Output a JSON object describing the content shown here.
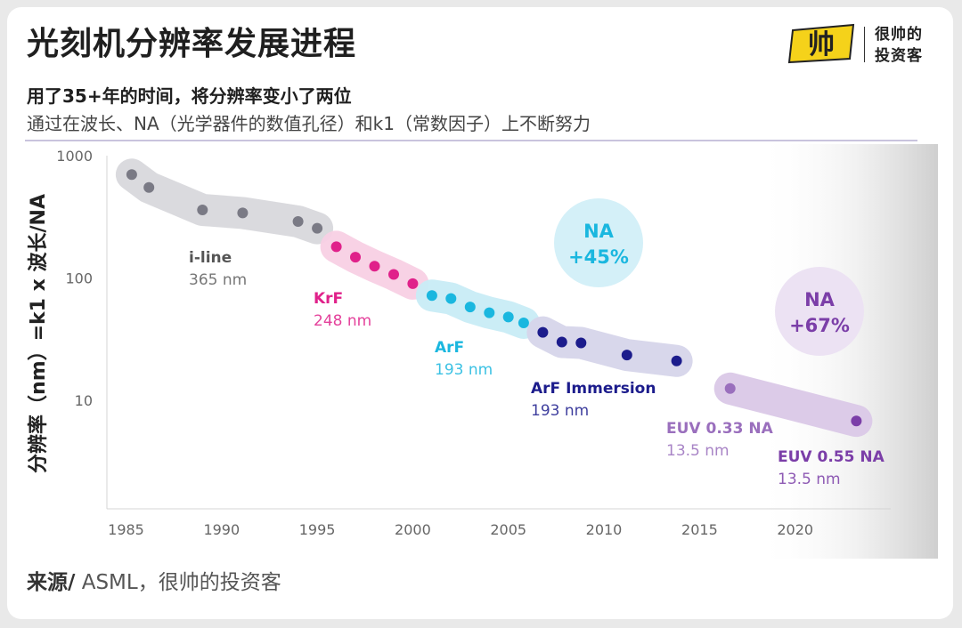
{
  "header": {
    "title": "光刻机分辨率发展进程",
    "subtitle": "用了35+年的时间，将分辨率变小了两位",
    "description": "通过在波长、NA（光学器件的数值孔径）和k1（常数因子）上不断努力",
    "source_label": "来源/",
    "source_text": " ASML，很帅的投资客"
  },
  "brand": {
    "logo_text": "帅",
    "line1": "很帅的",
    "line2": "投资客",
    "color": "#f5d21a"
  },
  "chart_data": {
    "type": "scatter",
    "title": "",
    "xlabel": "",
    "ylabel": "分辨率（nm）=k1 x 波长/NA",
    "y_scale": "log",
    "xlim": [
      1984,
      2025
    ],
    "ylim": [
      1.3,
      1000
    ],
    "x_ticks": [
      1985,
      1990,
      1995,
      2000,
      2005,
      2010,
      2015,
      2020
    ],
    "y_ticks": [
      1000,
      100,
      10
    ],
    "x_tick_labels": [
      "1985",
      "1990",
      "1995",
      "2000",
      "2005",
      "2010",
      "2015",
      "2020"
    ],
    "y_tick_labels": [
      "1000",
      "100",
      "10"
    ],
    "series": [
      {
        "key": "iline",
        "name": "i-line",
        "sub": "365 nm",
        "color": "#7a7a85",
        "band": "#d8d8dc",
        "points": [
          [
            1985.3,
            700
          ],
          [
            1986.2,
            550
          ],
          [
            1989,
            360
          ],
          [
            1991.1,
            340
          ],
          [
            1994,
            290
          ],
          [
            1995,
            255
          ]
        ]
      },
      {
        "key": "krf",
        "name": "KrF",
        "sub": "248 nm",
        "color": "#e0218a",
        "band": "#f8d0e4",
        "points": [
          [
            1996,
            180
          ],
          [
            1997,
            148
          ],
          [
            1998,
            125
          ],
          [
            1999,
            107
          ],
          [
            2000,
            90
          ]
        ]
      },
      {
        "key": "arf",
        "name": "ArF",
        "sub": "193 nm",
        "color": "#1ab7df",
        "band": "#c8ecf6",
        "points": [
          [
            2001,
            72
          ],
          [
            2002,
            68
          ],
          [
            2003,
            58
          ],
          [
            2004,
            52
          ],
          [
            2005,
            48
          ],
          [
            2005.8,
            43
          ]
        ]
      },
      {
        "key": "immersion",
        "name": "ArF Immersion",
        "sub": "193 nm",
        "color": "#1c1c8c",
        "band": "#d6d5ea",
        "points": [
          [
            2006.8,
            36
          ],
          [
            2007.8,
            30
          ],
          [
            2008.8,
            29.5
          ],
          [
            2011.2,
            23.5
          ],
          [
            2013.8,
            21
          ]
        ]
      },
      {
        "key": "euv033",
        "name": "EUV 0.33 NA",
        "sub": "13.5 nm",
        "color": "#9a6fbd",
        "band": "#e6dcef",
        "points": [
          [
            2016.6,
            12.5
          ]
        ]
      },
      {
        "key": "euv055",
        "name": "EUV 0.55 NA",
        "sub": "13.5 nm",
        "color": "#7b3ea8",
        "band": "#e6dcef",
        "points": [
          [
            2023.2,
            6.8
          ]
        ]
      }
    ],
    "annotations": [
      {
        "key": "na45",
        "line1": "NA",
        "line2": "+45%",
        "color": "#1ab7df",
        "fill": "#d4f0f8"
      },
      {
        "key": "na67",
        "line1": "NA",
        "line2": "+67%",
        "color": "#7b3ea8",
        "fill": "#ece2f3"
      }
    ]
  }
}
